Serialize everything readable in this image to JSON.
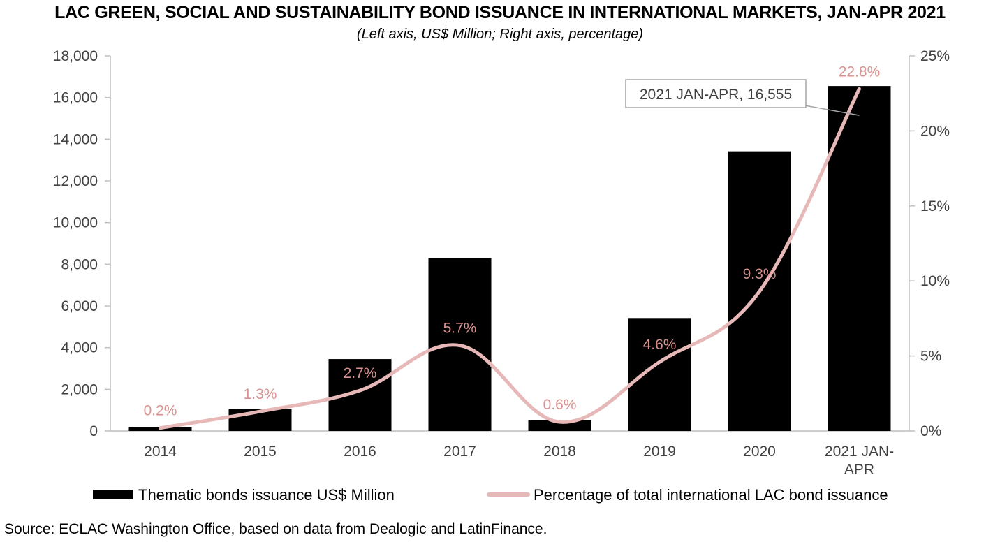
{
  "chart_data": {
    "type": "bar",
    "title": "LAC GREEN, SOCIAL AND SUSTAINABILITY BOND ISSUANCE IN INTERNATIONAL MARKETS, JAN-APR 2021",
    "subtitle": "(Left axis, US$ Million; Right axis, percentage)",
    "categories": [
      "2014",
      "2015",
      "2016",
      "2017",
      "2018",
      "2019",
      "2020",
      "2021 JAN-APR"
    ],
    "series": [
      {
        "name": "Thematic bonds issuance US$ Million",
        "type": "bar",
        "axis": "left",
        "color": "#000000",
        "values": [
          200,
          1050,
          3450,
          8300,
          520,
          5420,
          13420,
          16555
        ]
      },
      {
        "name": "Percentage of total international LAC bond issuance",
        "type": "line",
        "axis": "right",
        "color": "#e6b8b7",
        "values": [
          0.2,
          1.3,
          2.7,
          5.7,
          0.6,
          4.6,
          9.3,
          22.8
        ],
        "data_labels": [
          "0.2%",
          "1.3%",
          "2.7%",
          "5.7%",
          "0.6%",
          "4.6%",
          "9.3%",
          "22.8%"
        ],
        "label_color": "#d9928f"
      }
    ],
    "y_left": {
      "ylim": [
        0,
        18000
      ],
      "ticks": [
        0,
        2000,
        4000,
        6000,
        8000,
        10000,
        12000,
        14000,
        16000,
        18000
      ],
      "tick_labels": [
        "0",
        "2,000",
        "4,000",
        "6,000",
        "8,000",
        "10,000",
        "12,000",
        "14,000",
        "16,000",
        "18,000"
      ]
    },
    "y_right": {
      "ylim": [
        0,
        25
      ],
      "ticks": [
        0,
        5,
        10,
        15,
        20,
        25
      ],
      "tick_labels": [
        "0%",
        "5%",
        "10%",
        "15%",
        "20%",
        "25%"
      ]
    },
    "annotation": {
      "text": "2021 JAN-APR, 16,555",
      "category": "2021 JAN-APR"
    },
    "legend_position": "bottom",
    "grid": false,
    "source": "Source: ECLAC Washington Office, based on data from Dealogic and LatinFinance."
  }
}
